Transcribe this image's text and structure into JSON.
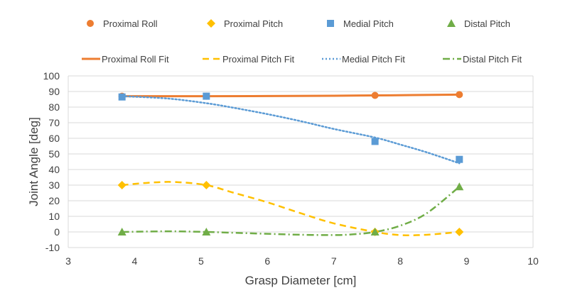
{
  "chart_data": {
    "type": "scatter",
    "xlabel": "Grasp Diameter [cm]",
    "ylabel": "Joint Angle [deg]",
    "xlim": [
      3,
      10
    ],
    "ylim": [
      -10,
      100
    ],
    "xticks": [
      "3",
      "4",
      "5",
      "6",
      "7",
      "8",
      "9",
      "10"
    ],
    "yticks": [
      "-10",
      "0",
      "10",
      "20",
      "30",
      "40",
      "50",
      "60",
      "70",
      "80",
      "90",
      "100"
    ],
    "grid": "horizontal",
    "legend_position": "top",
    "series": [
      {
        "name": "Proximal Roll",
        "kind": "points",
        "marker": "circle",
        "color": "#ED7D31",
        "x": [
          3.81,
          5.08,
          7.62,
          8.89
        ],
        "y": [
          87,
          87,
          87.5,
          88
        ]
      },
      {
        "name": "Proximal Pitch",
        "kind": "points",
        "marker": "diamond",
        "color": "#FFC000",
        "x": [
          3.81,
          5.08,
          7.62,
          8.89
        ],
        "y": [
          30,
          30,
          0,
          0
        ]
      },
      {
        "name": "Medial Pitch",
        "kind": "points",
        "marker": "square",
        "color": "#5B9BD5",
        "x": [
          3.81,
          5.08,
          7.62,
          8.89
        ],
        "y": [
          86.5,
          87,
          58,
          46.5
        ]
      },
      {
        "name": "Distal Pitch",
        "kind": "points",
        "marker": "triangle",
        "color": "#70AD47",
        "x": [
          3.81,
          5.08,
          7.62,
          8.89
        ],
        "y": [
          0,
          0,
          0,
          29
        ]
      },
      {
        "name": "Proximal Roll Fit",
        "kind": "line",
        "dash": "solid",
        "color": "#ED7D31",
        "x": [
          3.81,
          4.5,
          5.08,
          6.0,
          7.0,
          7.62,
          8.2,
          8.89
        ],
        "y": [
          87,
          87,
          87,
          87.1,
          87.3,
          87.5,
          87.7,
          88
        ]
      },
      {
        "name": "Proximal Pitch Fit",
        "kind": "line",
        "dash": "dash",
        "color": "#FFC000",
        "x": [
          3.81,
          4.2,
          4.6,
          5.08,
          5.5,
          6.0,
          6.5,
          7.0,
          7.62,
          8.0,
          8.4,
          8.89
        ],
        "y": [
          30,
          31.5,
          32,
          30,
          25,
          19,
          12,
          5.5,
          0,
          -2,
          -1.8,
          0
        ]
      },
      {
        "name": "Medial Pitch Fit",
        "kind": "line",
        "dash": "dot",
        "color": "#5B9BD5",
        "x": [
          3.81,
          4.5,
          5.08,
          5.5,
          6.0,
          6.5,
          7.0,
          7.62,
          8.0,
          8.4,
          8.89
        ],
        "y": [
          87,
          85.5,
          82.5,
          79.5,
          75.5,
          71,
          66,
          60.5,
          56,
          51,
          44
        ]
      },
      {
        "name": "Distal Pitch Fit",
        "kind": "line",
        "dash": "dashdot",
        "color": "#70AD47",
        "x": [
          3.81,
          4.5,
          5.08,
          5.6,
          6.0,
          6.5,
          7.0,
          7.3,
          7.62,
          8.0,
          8.4,
          8.89
        ],
        "y": [
          0,
          0.4,
          0,
          -0.7,
          -1.2,
          -1.8,
          -2,
          -1.5,
          0,
          4,
          12,
          29
        ]
      }
    ]
  }
}
